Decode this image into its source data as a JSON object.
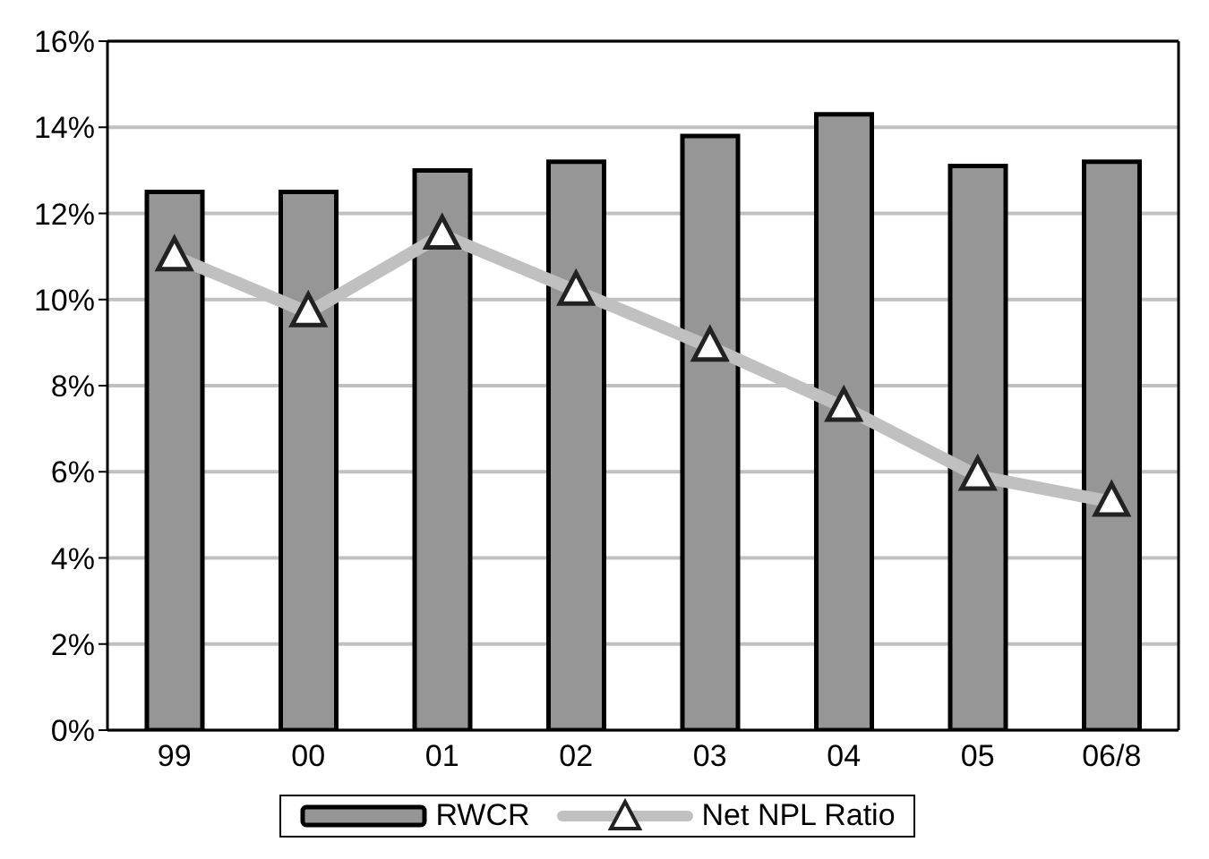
{
  "chart_data": {
    "type": "bar",
    "categories": [
      "99",
      "00",
      "01",
      "02",
      "03",
      "04",
      "05",
      "06/8"
    ],
    "series": [
      {
        "name": "RWCR",
        "color": "#969696",
        "values": [
          12.5,
          12.5,
          13.0,
          13.2,
          13.8,
          14.3,
          13.1,
          13.2
        ]
      },
      {
        "name": "Net NPL Ratio",
        "type": "line",
        "color": "#c0c0c0",
        "values": [
          11.0,
          9.7,
          11.5,
          10.2,
          8.9,
          7.5,
          5.9,
          5.3
        ]
      }
    ],
    "ylim": [
      0,
      16
    ],
    "yticks": [
      {
        "value": 0,
        "label": "0%"
      },
      {
        "value": 2,
        "label": "2%"
      },
      {
        "value": 4,
        "label": "4%"
      },
      {
        "value": 6,
        "label": "6%"
      },
      {
        "value": 8,
        "label": "8%"
      },
      {
        "value": 10,
        "label": "10%"
      },
      {
        "value": 12,
        "label": "12%"
      },
      {
        "value": 14,
        "label": "14%"
      },
      {
        "value": 16,
        "label": "16%"
      }
    ],
    "grid": "y",
    "legend": "bottom",
    "marker": "triangle",
    "line_style": "solid"
  }
}
